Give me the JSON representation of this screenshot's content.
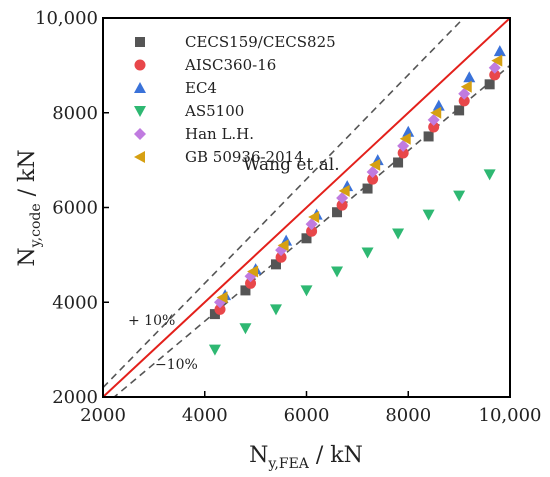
{
  "chart_data": {
    "type": "scatter",
    "xlabel": {
      "main": "N",
      "sub": "y,FEA",
      "unit": " / kN"
    },
    "ylabel": {
      "main": "N",
      "sub": "y,code",
      "unit": " / kN"
    },
    "xlim": [
      2000,
      10000
    ],
    "ylim": [
      2000,
      10000
    ],
    "xticks": [
      {
        "value": 2000,
        "label": "2000"
      },
      {
        "value": 4000,
        "label": "4000"
      },
      {
        "value": 6000,
        "label": "6000"
      },
      {
        "value": 8000,
        "label": "8000"
      },
      {
        "value": 10000,
        "label": "10,000"
      }
    ],
    "yticks": [
      {
        "value": 2000,
        "label": "2000"
      },
      {
        "value": 4000,
        "label": "4000"
      },
      {
        "value": 6000,
        "label": "6000"
      },
      {
        "value": 8000,
        "label": "8000"
      },
      {
        "value": 10000,
        "label": "10,000"
      }
    ],
    "reference_lines": [
      {
        "label": "",
        "slope": 1.0,
        "style": "solid",
        "color": "#e3201b"
      },
      {
        "label": "+ 10%",
        "slope": 1.1,
        "style": "dashed",
        "color": "#555555"
      },
      {
        "label": "−10%",
        "slope": 0.9,
        "style": "dashed",
        "color": "#555555"
      }
    ],
    "legend_position": "top-right",
    "series": [
      {
        "name": "CECS159/CECS825",
        "marker": "square",
        "color": "#555555",
        "x": [
          4200,
          4800,
          5400,
          6000,
          6600,
          7200,
          7800,
          8400,
          9000,
          9600
        ],
        "y": [
          3750,
          4250,
          4800,
          5350,
          5900,
          6400,
          6950,
          7500,
          8050,
          8600
        ]
      },
      {
        "name": "AISC360-16",
        "marker": "circle",
        "color": "#e8474a",
        "x": [
          4300,
          4900,
          5500,
          6100,
          6700,
          7300,
          7900,
          8500,
          9100,
          9700
        ],
        "y": [
          3850,
          4400,
          4950,
          5500,
          6050,
          6600,
          7150,
          7700,
          8250,
          8800
        ]
      },
      {
        "name": "EC4",
        "marker": "triangle-up",
        "color": "#3a72d9",
        "x": [
          4400,
          5000,
          5600,
          6200,
          6800,
          7400,
          8000,
          8600,
          9200,
          9800
        ],
        "y": [
          4150,
          4700,
          5300,
          5850,
          6450,
          7000,
          7600,
          8150,
          8750,
          9300
        ]
      },
      {
        "name": "AS5100",
        "marker": "triangle-down",
        "color": "#2eb872",
        "x": [
          4200,
          4800,
          5400,
          6000,
          6600,
          7200,
          7800,
          8400,
          9000,
          9600
        ],
        "y": [
          3000,
          3450,
          3850,
          4250,
          4650,
          5050,
          5450,
          5850,
          6250,
          6700
        ]
      },
      {
        "name": "Han L.H.",
        "marker": "diamond",
        "color": "#c07be0",
        "x": [
          4300,
          4900,
          5500,
          6100,
          6700,
          7300,
          7900,
          8500,
          9100,
          9700
        ],
        "y": [
          4000,
          4550,
          5100,
          5650,
          6200,
          6750,
          7300,
          7850,
          8400,
          8950
        ]
      },
      {
        "name": "GB 50936-2014",
        "marker": "triangle-left",
        "color": "#d6a012",
        "x": [
          4350,
          4950,
          5550,
          6150,
          6750,
          7350,
          7950,
          8550,
          9150,
          9750
        ],
        "y": [
          4100,
          4650,
          5200,
          5800,
          6350,
          6900,
          7450,
          8000,
          8550,
          9100
        ]
      }
    ],
    "annotations": [
      "Wang et al."
    ]
  }
}
